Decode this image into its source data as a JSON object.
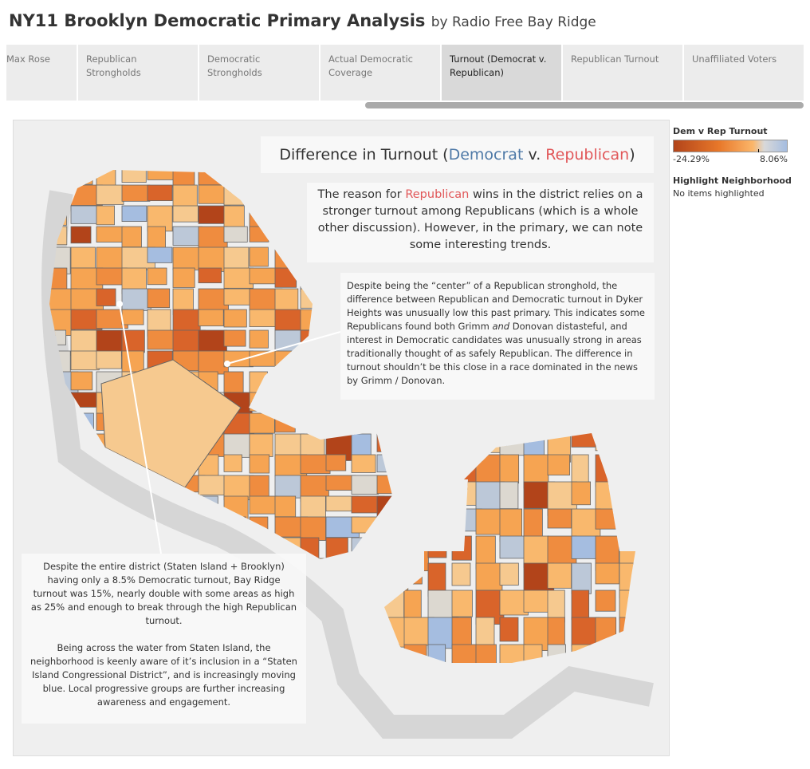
{
  "header": {
    "title": "NY11 Brooklyn Democratic Primary Analysis",
    "byline": "by Radio Free Bay Ridge"
  },
  "tabs": [
    {
      "label": "Max Rose"
    },
    {
      "label": "Republican Strongholds"
    },
    {
      "label": "Democratic Strongholds"
    },
    {
      "label": "Actual Democratic Coverage"
    },
    {
      "label": "Turnout (Democrat v. Republican)",
      "active": true
    },
    {
      "label": "Republican Turnout"
    },
    {
      "label": "Unaffiliated Voters"
    }
  ],
  "map": {
    "heading": {
      "prefix": "Difference in Turnout (",
      "dem": "Democrat",
      "mid": " v. ",
      "rep": "Republican",
      "suffix": ")"
    },
    "intro": {
      "pre": "The reason for ",
      "rep": "Republican",
      "post": " wins in the district relies on a stronger turnout among Republicans (which is a whole other discussion). However, in the primary, we can note some interesting trends."
    },
    "note_dyker": {
      "a": "Despite being the “center” of a Republican stronghold, the difference between Republican and Democratic turnout in Dyker Heights was unusually low this past primary. This indicates some Republicans found both Grimm ",
      "em": "and",
      "b": " Donovan distasteful, and interest in Democratic candidates was unusually strong in areas traditionally thought of as safely Republican. The difference in turnout shouldn’t be this close in a race dominated in the news by Grimm / Donovan."
    },
    "note_bayridge": {
      "p1": "Despite the entire district (Staten Island + Brooklyn) having only a 8.5% Democratic turnout, Bay Ridge turnout was 15%, nearly double with some areas as high as 25% and enough to break through the high Republican turnout.",
      "p2": "Being across the water from Staten Island, the neighborhood is keenly aware of it’s inclusion in a “Staten Island Congressional District”, and is increasingly moving blue. Local progressive groups are further increasing awareness and engagement."
    },
    "palette": [
      "#b2441a",
      "#d9642a",
      "#ef8c3f",
      "#f6a452",
      "#f9b86d",
      "#f6c98f",
      "#dcd8d0",
      "#bcc8d8",
      "#a5bde0"
    ]
  },
  "legend": {
    "title": "Dem v Rep Turnout",
    "min": "-24.29%",
    "max": "8.06%",
    "highlight_title": "Highlight Neighborhood",
    "highlight_value": "No items highlighted"
  }
}
